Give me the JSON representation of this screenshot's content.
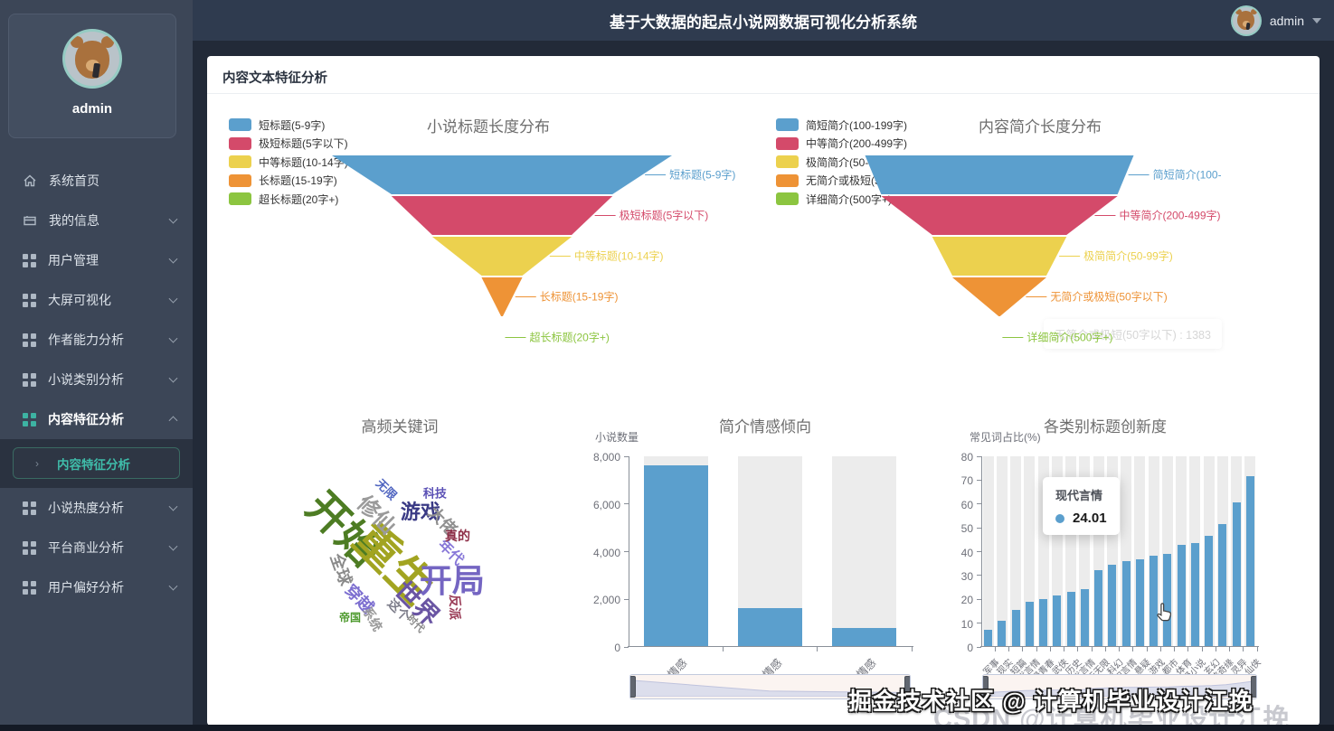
{
  "app": {
    "title": "基于大数据的起点小说网数据可视化分析系统",
    "header_user": "admin",
    "accent_color": "#3db3a3"
  },
  "sidebar": {
    "username": "admin",
    "menu": [
      {
        "key": "home",
        "label": "系统首页",
        "icon": "home-icon",
        "chevron": "none",
        "active": false
      },
      {
        "key": "profile",
        "label": "我的信息",
        "icon": "card-icon",
        "chevron": "down",
        "active": false
      },
      {
        "key": "users",
        "label": "用户管理",
        "icon": "grid-icon",
        "chevron": "down",
        "active": false
      },
      {
        "key": "bigscreen",
        "label": "大屏可视化",
        "icon": "grid-icon",
        "chevron": "down",
        "active": false
      },
      {
        "key": "author",
        "label": "作者能力分析",
        "icon": "grid-icon",
        "chevron": "down",
        "active": false
      },
      {
        "key": "category",
        "label": "小说类别分析",
        "icon": "grid-icon",
        "chevron": "down",
        "active": false
      },
      {
        "key": "content",
        "label": "内容特征分析",
        "icon": "grid-icon",
        "chevron": "up",
        "active": true,
        "submenu": [
          {
            "key": "content-sub",
            "label": "内容特征分析",
            "active": true
          }
        ]
      },
      {
        "key": "heat",
        "label": "小说热度分析",
        "icon": "grid-icon",
        "chevron": "down",
        "active": false
      },
      {
        "key": "business",
        "label": "平台商业分析",
        "icon": "grid-icon",
        "chevron": "down",
        "active": false
      },
      {
        "key": "preference",
        "label": "用户偏好分析",
        "icon": "grid-icon",
        "chevron": "down",
        "active": false
      }
    ]
  },
  "page": {
    "card_title": "内容文本特征分析"
  },
  "watermark": {
    "line1": "掘金技术社区 @ 计算机毕业设计江挽",
    "line2": "CSDN @计算机毕业设计江挽"
  },
  "chart_data": [
    {
      "id": "title-length-funnel",
      "type": "funnel",
      "title": "小说标题长度分布",
      "legend_position": "left",
      "items": [
        {
          "label": "短标题(5-9字)",
          "color": "#5b9fcd",
          "width_pct": 100
        },
        {
          "label": "极短标题(5字以下)",
          "color": "#d44a6a",
          "width_pct": 65
        },
        {
          "label": "中等标题(10-14字)",
          "color": "#ecd14e",
          "width_pct": 41
        },
        {
          "label": "长标题(15-19字)",
          "color": "#ee9336",
          "width_pct": 12
        },
        {
          "label": "超长标题(20字+)",
          "color": "#8cc540",
          "width_pct": 0.5
        }
      ]
    },
    {
      "id": "intro-length-funnel",
      "type": "funnel",
      "title": "内容简介长度分布",
      "legend_position": "left",
      "items": [
        {
          "label": "简短简介(100-199字)",
          "color": "#5b9fcd",
          "width_pct": 100
        },
        {
          "label": "中等简介(200-499字)",
          "color": "#d44a6a",
          "width_pct": 88
        },
        {
          "label": "极简简介(50-99字)",
          "color": "#ecd14e",
          "width_pct": 50
        },
        {
          "label": "无简介或极短(50字以下)",
          "color": "#ee9336",
          "width_pct": 35,
          "value": 1383
        },
        {
          "label": "详细简介(500字+)",
          "color": "#8cc540",
          "width_pct": 0.5
        }
      ],
      "fading_tooltip": "无简介或极短(50字以下) : 1383"
    },
    {
      "id": "keywords-wordcloud",
      "type": "wordcloud",
      "title": "高频关键词",
      "words": [
        {
          "text": "开始",
          "color": "#4d7c23",
          "size": 46,
          "rotate": 45,
          "x": 29.4,
          "y": 34.8
        },
        {
          "text": "重生",
          "color": "#a2a421",
          "size": 50,
          "rotate": 45,
          "x": 45.9,
          "y": 47.9
        },
        {
          "text": "开局",
          "color": "#7465c2",
          "size": 36,
          "rotate": 0,
          "x": 64.1,
          "y": 54.5
        },
        {
          "text": "世界",
          "color": "#6a55a3",
          "size": 28,
          "rotate": 45,
          "x": 52.9,
          "y": 63.8
        },
        {
          "text": "修仙",
          "color": "#9a9a9a",
          "size": 24,
          "rotate": 45,
          "x": 40.0,
          "y": 29.7
        },
        {
          "text": "游戏",
          "color": "#3a3a85",
          "size": 22,
          "rotate": 0,
          "x": 53.8,
          "y": 28.6
        },
        {
          "text": "大佬",
          "color": "#8f8f8f",
          "size": 18,
          "rotate": 45,
          "x": 61.2,
          "y": 32.4
        },
        {
          "text": "全球",
          "color": "#8a8a8a",
          "size": 18,
          "rotate": 70,
          "x": 28.2,
          "y": 51.0
        },
        {
          "text": "穿越",
          "color": "#7d6fd0",
          "size": 18,
          "rotate": 45,
          "x": 34.1,
          "y": 62.1
        },
        {
          "text": "年代",
          "color": "#8878d8",
          "size": 16,
          "rotate": 45,
          "x": 64.1,
          "y": 44.1
        },
        {
          "text": "真的",
          "color": "#8e2f48",
          "size": 14,
          "rotate": 0,
          "x": 65.9,
          "y": 38.3
        },
        {
          "text": "系统",
          "color": "#999999",
          "size": 14,
          "rotate": 60,
          "x": 38.2,
          "y": 70.0
        },
        {
          "text": "这个",
          "color": "#7d7d8a",
          "size": 14,
          "rotate": 45,
          "x": 46.8,
          "y": 66.6
        },
        {
          "text": "反派",
          "color": "#993a55",
          "size": 14,
          "rotate": 90,
          "x": 65.0,
          "y": 65.5
        },
        {
          "text": "无限",
          "color": "#4f64c0",
          "size": 13,
          "rotate": 45,
          "x": 42.9,
          "y": 20.3
        },
        {
          "text": "科技",
          "color": "#5a50b5",
          "size": 13,
          "rotate": 0,
          "x": 58.5,
          "y": 21.7
        },
        {
          "text": "帝国",
          "color": "#4e9a2e",
          "size": 12,
          "rotate": 0,
          "x": 30.9,
          "y": 69.3
        },
        {
          "text": "时代",
          "color": "#888888",
          "size": 11,
          "rotate": 45,
          "x": 52.4,
          "y": 71.7
        }
      ]
    },
    {
      "id": "sentiment-bar",
      "type": "bar",
      "title": "简介情感倾向",
      "xlabel": "",
      "ylabel": "小说数量",
      "ylim": [
        0,
        8000
      ],
      "yticks": [
        "0",
        "2,000",
        "4,000",
        "6,000",
        "8,000"
      ],
      "categories": [
        "中性情感",
        "积极情感",
        "消极情感"
      ],
      "values": [
        7630,
        1600,
        745
      ],
      "bar_color": "#5b9fcd",
      "background_bars": true,
      "grid": false,
      "datazoom": true
    },
    {
      "id": "innovation-bar",
      "type": "bar",
      "title": "各类别标题创新度",
      "xlabel": "",
      "ylabel": "常见词占比(%)",
      "ylim": [
        0,
        80
      ],
      "yticks": [
        "0",
        "10",
        "20",
        "30",
        "40",
        "50",
        "60",
        "70",
        "80"
      ],
      "categories": [
        "军事",
        "现实",
        "短篇",
        "古代言情",
        "浪漫青春",
        "武侠",
        "历史",
        "现代言情",
        "诸天无限",
        "科幻",
        "玄幻言情",
        "悬疑",
        "游戏",
        "都市",
        "体育",
        "轻小说",
        "玄幻",
        "仙侠奇缘",
        "灵异",
        "仙侠"
      ],
      "values": [
        7,
        10.5,
        15.3,
        18.6,
        19.8,
        21.2,
        22.8,
        24.01,
        32,
        34.2,
        36,
        36.6,
        38.2,
        38.8,
        42.5,
        43.6,
        46.4,
        51.5,
        60.5,
        71.5
      ],
      "bar_color": "#5b9fcd",
      "background_bars": true,
      "grid": false,
      "datazoom": true,
      "tooltip": {
        "name": "现代言情",
        "value": "24.01",
        "dot_color": "#5b9fcd"
      }
    }
  ]
}
